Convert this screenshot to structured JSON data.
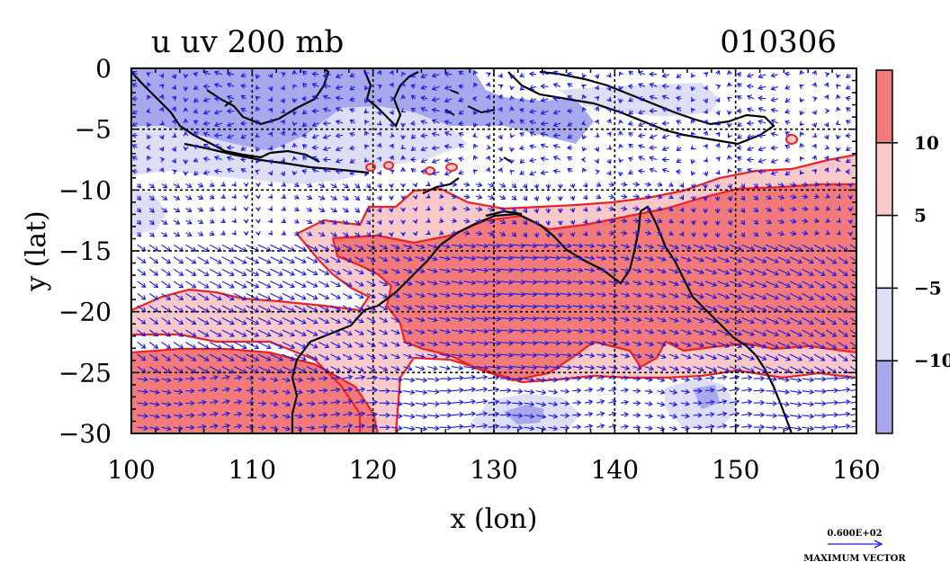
{
  "chart_data": {
    "type": "heatmap",
    "title": "u uv 200 mb",
    "date_label": "010306",
    "xlabel": "x (lon)",
    "ylabel": "y (lat)",
    "xlim": [
      100,
      160
    ],
    "ylim": [
      -30,
      0
    ],
    "x_ticks": [
      100,
      110,
      120,
      130,
      140,
      150,
      160
    ],
    "y_ticks": [
      0,
      -5,
      -10,
      -15,
      -20,
      -25,
      -30
    ],
    "x_tick_labels": [
      "100",
      "110",
      "120",
      "130",
      "140",
      "150",
      "160"
    ],
    "y_tick_labels": [
      "0",
      "−5",
      "−10",
      "−15",
      "−20",
      "−25",
      "−30"
    ],
    "grid": true,
    "colorbar": {
      "placement": "right",
      "levels": [
        {
          "range": "> 10",
          "color": "#f27a7a"
        },
        {
          "range": "5 to 10",
          "color": "#f9c8c8"
        },
        {
          "range": "-5 to 5",
          "color": "#ffffff"
        },
        {
          "range": "-10 to -5",
          "color": "#dedef8"
        },
        {
          "range": "< -10",
          "color": "#a8a8ef"
        }
      ],
      "tick_labels": [
        "10",
        "5",
        "−5",
        "−10"
      ]
    },
    "vector_legend": {
      "value": "0.600E+02",
      "label": "MAXIMUM VECTOR"
    },
    "overlays": [
      "coastlines",
      "wind vectors",
      "u-wind 5 m/s contour"
    ]
  },
  "colors": {
    "pos_strong": "#f27a7a",
    "pos_weak": "#f9c8c8",
    "neg_weak": "#dedef8",
    "neg_strong": "#a8a8ef",
    "contour": "#ee2222",
    "vectors": "#1a1ae6",
    "coast": "#000000",
    "grid": "#000000"
  }
}
